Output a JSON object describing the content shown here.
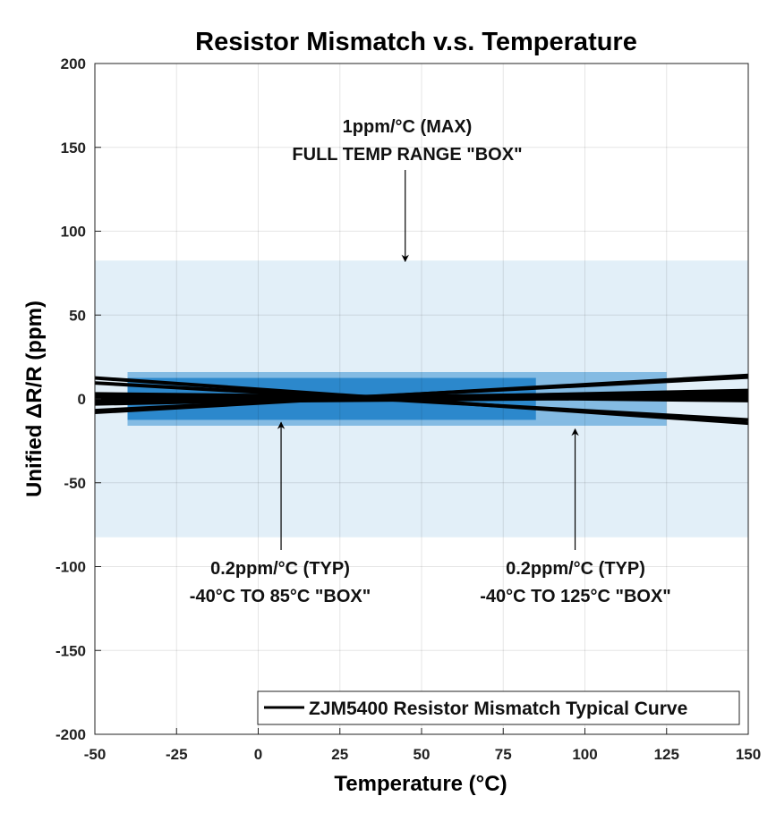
{
  "chart_data": {
    "type": "line",
    "title": "Resistor Mismatch v.s. Temperature",
    "xlabel": "Temperature (°C)",
    "ylabel": "Unified ΔR/R (ppm)",
    "xlim": [
      -50,
      150
    ],
    "ylim": [
      -200,
      200
    ],
    "xticks": [
      -50,
      -25,
      0,
      25,
      50,
      75,
      100,
      125,
      150
    ],
    "yticks": [
      -200,
      -150,
      -100,
      -50,
      0,
      50,
      100,
      150,
      200
    ],
    "grid": true,
    "legend": {
      "placement": "bottom-right",
      "label": "ZJM5400 Resistor Mismatch Typical Curve"
    },
    "boxes": [
      {
        "x": [
          -50,
          150
        ],
        "y": [
          -82.5,
          82.5
        ],
        "color": "#e2eff8"
      },
      {
        "x": [
          -40,
          125
        ],
        "y": [
          -16,
          16
        ],
        "color": "#84bbe3"
      },
      {
        "x": [
          -40,
          85
        ],
        "y": [
          -12.5,
          12.5
        ],
        "color": "#2c88cc"
      }
    ],
    "series_x": [
      -50,
      150
    ],
    "series": [
      {
        "values": [
          12.5,
          -14.5
        ]
      },
      {
        "values": [
          9.5,
          -12.5
        ]
      },
      {
        "values": [
          -8,
          14
        ]
      },
      {
        "values": [
          -7,
          13
        ]
      },
      {
        "values": [
          3,
          -1
        ]
      },
      {
        "values": [
          2,
          0
        ]
      },
      {
        "values": [
          1,
          2
        ]
      },
      {
        "values": [
          0,
          3
        ]
      },
      {
        "values": [
          -1,
          4
        ]
      },
      {
        "values": [
          -3,
          5
        ]
      },
      {
        "values": [
          -2,
          1
        ]
      }
    ],
    "annotations": [
      {
        "lines": [
          "1ppm/°C (MAX)",
          "FULL TEMP RANGE \"BOX\""
        ],
        "arrow_to": [
          45,
          82
        ]
      },
      {
        "lines": [
          "0.2ppm/°C (TYP)",
          "-40°C TO 85°C \"BOX\""
        ],
        "arrow_to": [
          7,
          -14
        ]
      },
      {
        "lines": [
          "0.2ppm/°C (TYP)",
          "-40°C TO 125°C \"BOX\""
        ],
        "arrow_to": [
          97,
          -18
        ]
      }
    ]
  }
}
